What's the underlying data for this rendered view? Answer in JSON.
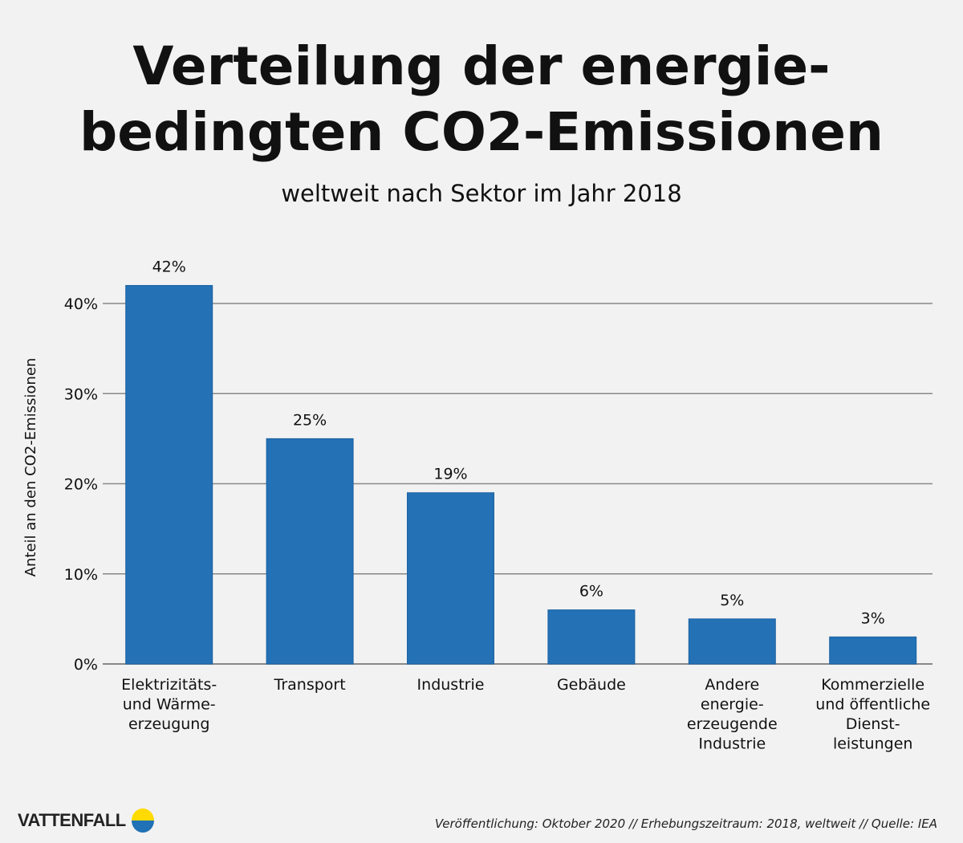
{
  "chart_data": {
    "type": "bar",
    "title_lines": [
      "Verteilung der energie-",
      "bedingten CO2-Emissionen"
    ],
    "subtitle": "weltweit nach Sektor im Jahr 2018",
    "ylabel": "Anteil an den CO2-Emissionen",
    "xlabel": "",
    "ylim": [
      0,
      42
    ],
    "yticks": [
      0,
      10,
      20,
      30,
      40
    ],
    "ytick_labels": [
      "0%",
      "10%",
      "20%",
      "30%",
      "40%"
    ],
    "grid": true,
    "categories": [
      [
        "Elektrizitäts-",
        "und Wärme-",
        "erzeugung"
      ],
      [
        "Transport"
      ],
      [
        "Industrie"
      ],
      [
        "Gebäude"
      ],
      [
        "Andere",
        "energie-",
        "erzeugende",
        "Industrie"
      ],
      [
        "Kommerzielle",
        "und öffentliche",
        "Dienst-",
        "leistungen"
      ]
    ],
    "values": [
      42,
      25,
      19,
      6,
      5,
      3
    ],
    "data_labels": [
      "42%",
      "25%",
      "19%",
      "6%",
      "5%",
      "3%"
    ],
    "bar_color": "#2471b5"
  },
  "footer": {
    "brand": "VATTENFALL",
    "note": "Veröffentlichung: Oktober 2020  //  Erhebungszeitraum: 2018, weltweit  //  Quelle: IEA"
  },
  "colors": {
    "logo_yellow": "#ffda00",
    "logo_blue": "#2071b5",
    "grid": "#888888"
  }
}
